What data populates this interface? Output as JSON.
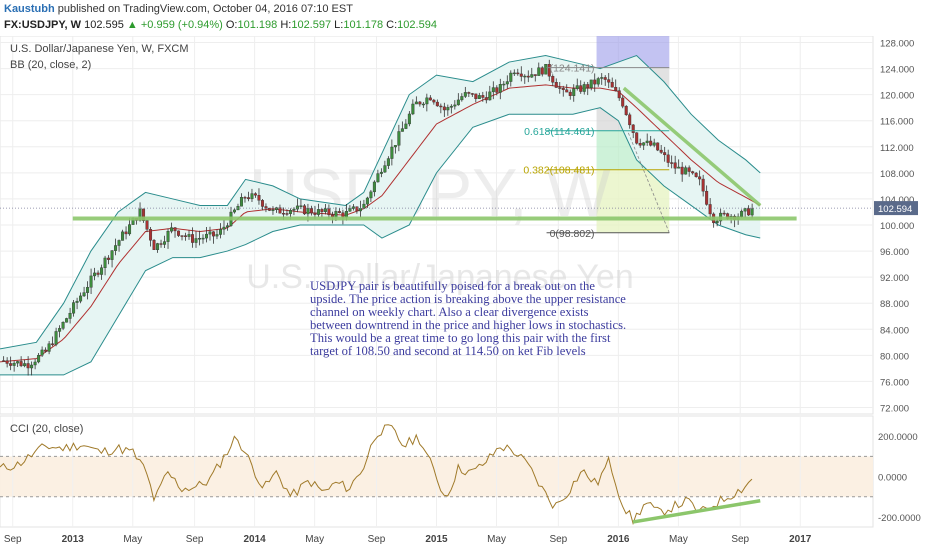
{
  "header": {
    "author": "Kaustubh",
    "published": "published on TradingView.com, October 04, 2016 07:10 EST",
    "symbol": "FX:USDJPY, W",
    "last": "102.595",
    "change": "+0.959 (+0.94%)",
    "open_label": "O:",
    "open": "101.198",
    "high_label": "H:",
    "high": "102.597",
    "low_label": "L:",
    "low": "101.178",
    "close_label": "C:",
    "close": "102.594"
  },
  "main_pane": {
    "title": "U.S. Dollar/Japanese Yen, W, FXCM",
    "indicator": "BB (20, close, 2)",
    "watermark_symbol": "USDJPY, W",
    "watermark_name": "U.S. Dollar/Japanese Yen",
    "last_price_tag": "102.594",
    "annotation": "USDJPY pair is beautifully poised for a break out on the upside. The price action is breaking above the upper resistance channel on weekly chart. Also a clear divergence exists between downtrend in the price and higher lows in stochastics. This would be a great time to go long this pair with the first target of 108.50 and second at 114.50 on ket Fib levels"
  },
  "fib_levels": [
    {
      "label": "(124.141)",
      "value": 124.141,
      "color": "#888888"
    },
    {
      "label": "0.618(114.461)",
      "value": 114.461,
      "color": "#26a69a"
    },
    {
      "label": "0.382(108.481)",
      "value": 108.481,
      "color": "#b8a400"
    },
    {
      "label": "0(98.802)",
      "value": 98.802,
      "color": "#555555"
    }
  ],
  "cci_pane": {
    "title": "CCI (20, close)",
    "ylim": [
      -250,
      300
    ],
    "ticks": [
      {
        "v": 200,
        "label": "200.0000"
      },
      {
        "v": 0,
        "label": "0.0000"
      },
      {
        "v": -200,
        "label": "-200.0000"
      }
    ],
    "band": [
      -100,
      100
    ]
  },
  "x_axis": {
    "ticks": [
      {
        "label": "Sep",
        "x": 2012.67,
        "bold": false
      },
      {
        "label": "2013",
        "x": 2013.0,
        "bold": true
      },
      {
        "label": "May",
        "x": 2013.33,
        "bold": false
      },
      {
        "label": "Sep",
        "x": 2013.67,
        "bold": false
      },
      {
        "label": "2014",
        "x": 2014.0,
        "bold": true
      },
      {
        "label": "May",
        "x": 2014.33,
        "bold": false
      },
      {
        "label": "Sep",
        "x": 2014.67,
        "bold": false
      },
      {
        "label": "2015",
        "x": 2015.0,
        "bold": true
      },
      {
        "label": "May",
        "x": 2015.33,
        "bold": false
      },
      {
        "label": "Sep",
        "x": 2015.67,
        "bold": false
      },
      {
        "label": "2016",
        "x": 2016.0,
        "bold": true
      },
      {
        "label": "May",
        "x": 2016.33,
        "bold": false
      },
      {
        "label": "Sep",
        "x": 2016.67,
        "bold": false
      },
      {
        "label": "2017",
        "x": 2017.0,
        "bold": true
      }
    ]
  },
  "chart_data": {
    "type": "candlestick",
    "title": "U.S. Dollar/Japanese Yen, W, FXCM",
    "ylim": [
      71,
      129
    ],
    "xlim": [
      2012.6,
      2017.4
    ],
    "y_ticks": [
      {
        "v": 128,
        "label": "128.000"
      },
      {
        "v": 124,
        "label": "124.000"
      },
      {
        "v": 120,
        "label": "120.000"
      },
      {
        "v": 116,
        "label": "116.000"
      },
      {
        "v": 112,
        "label": "112.000"
      },
      {
        "v": 108,
        "label": "108.000"
      },
      {
        "v": 104,
        "label": "104.000"
      },
      {
        "v": 100,
        "label": "100.000"
      },
      {
        "v": 96,
        "label": "96.000"
      },
      {
        "v": 92,
        "label": "92.000"
      },
      {
        "v": 88,
        "label": "88.000"
      },
      {
        "v": 84,
        "label": "84.000"
      },
      {
        "v": 80,
        "label": "80.000"
      },
      {
        "v": 76,
        "label": "76.000"
      },
      {
        "v": 72,
        "label": "72.000"
      }
    ],
    "close_path": [
      [
        2012.62,
        79.2
      ],
      [
        2012.75,
        78.6
      ],
      [
        2012.85,
        80.5
      ],
      [
        2012.95,
        85.0
      ],
      [
        2013.05,
        89.5
      ],
      [
        2013.15,
        93.5
      ],
      [
        2013.25,
        97.5
      ],
      [
        2013.37,
        102.0
      ],
      [
        2013.45,
        96.5
      ],
      [
        2013.55,
        99.5
      ],
      [
        2013.65,
        97.8
      ],
      [
        2013.8,
        98.5
      ],
      [
        2013.95,
        104.5
      ],
      [
        2014.02,
        104.0
      ],
      [
        2014.1,
        102.0
      ],
      [
        2014.2,
        102.5
      ],
      [
        2014.3,
        102.2
      ],
      [
        2014.4,
        101.8
      ],
      [
        2014.5,
        101.7
      ],
      [
        2014.6,
        103.0
      ],
      [
        2014.7,
        109.0
      ],
      [
        2014.8,
        114.0
      ],
      [
        2014.88,
        118.5
      ],
      [
        2014.97,
        119.8
      ],
      [
        2015.05,
        117.5
      ],
      [
        2015.15,
        120.0
      ],
      [
        2015.25,
        119.5
      ],
      [
        2015.35,
        121.0
      ],
      [
        2015.43,
        124.0
      ],
      [
        2015.5,
        123.0
      ],
      [
        2015.6,
        124.0
      ],
      [
        2015.7,
        120.0
      ],
      [
        2015.8,
        121.0
      ],
      [
        2015.92,
        122.5
      ],
      [
        2016.02,
        119.0
      ],
      [
        2016.1,
        113.0
      ],
      [
        2016.2,
        112.0
      ],
      [
        2016.3,
        109.0
      ],
      [
        2016.38,
        108.0
      ],
      [
        2016.45,
        106.5
      ],
      [
        2016.52,
        101.0
      ],
      [
        2016.6,
        101.5
      ],
      [
        2016.67,
        101.5
      ],
      [
        2016.75,
        102.594
      ]
    ],
    "bb_upper": [
      [
        2012.6,
        81
      ],
      [
        2012.8,
        82
      ],
      [
        2012.95,
        88
      ],
      [
        2013.1,
        96
      ],
      [
        2013.25,
        102
      ],
      [
        2013.4,
        105
      ],
      [
        2013.55,
        104
      ],
      [
        2013.7,
        103
      ],
      [
        2013.85,
        103
      ],
      [
        2013.95,
        107
      ],
      [
        2014.1,
        106
      ],
      [
        2014.25,
        104
      ],
      [
        2014.5,
        103
      ],
      [
        2014.6,
        105
      ],
      [
        2014.7,
        111
      ],
      [
        2014.85,
        120
      ],
      [
        2015.0,
        123
      ],
      [
        2015.2,
        122
      ],
      [
        2015.4,
        125
      ],
      [
        2015.6,
        126
      ],
      [
        2015.75,
        125
      ],
      [
        2015.9,
        124
      ],
      [
        2016.0,
        125
      ],
      [
        2016.1,
        126
      ],
      [
        2016.25,
        122
      ],
      [
        2016.4,
        117
      ],
      [
        2016.55,
        113
      ],
      [
        2016.7,
        110
      ],
      [
        2016.78,
        108
      ]
    ],
    "bb_lower": [
      [
        2012.6,
        77
      ],
      [
        2012.8,
        77
      ],
      [
        2012.95,
        77
      ],
      [
        2013.1,
        79
      ],
      [
        2013.25,
        86
      ],
      [
        2013.4,
        93
      ],
      [
        2013.55,
        95
      ],
      [
        2013.7,
        95
      ],
      [
        2013.85,
        96
      ],
      [
        2013.95,
        97
      ],
      [
        2014.1,
        99
      ],
      [
        2014.25,
        100
      ],
      [
        2014.5,
        100
      ],
      [
        2014.6,
        100
      ],
      [
        2014.7,
        98
      ],
      [
        2014.85,
        100
      ],
      [
        2015.0,
        108
      ],
      [
        2015.2,
        115
      ],
      [
        2015.4,
        117
      ],
      [
        2015.6,
        117
      ],
      [
        2015.75,
        117
      ],
      [
        2015.9,
        118
      ],
      [
        2016.0,
        116
      ],
      [
        2016.1,
        110
      ],
      [
        2016.25,
        106
      ],
      [
        2016.4,
        103
      ],
      [
        2016.55,
        100
      ],
      [
        2016.7,
        98.5
      ],
      [
        2016.78,
        98
      ]
    ],
    "cci_values": [
      [
        2012.6,
        40
      ],
      [
        2012.7,
        60
      ],
      [
        2012.78,
        110
      ],
      [
        2012.85,
        150
      ],
      [
        2012.95,
        140
      ],
      [
        2013.05,
        160
      ],
      [
        2013.15,
        120
      ],
      [
        2013.25,
        140
      ],
      [
        2013.33,
        120
      ],
      [
        2013.4,
        30
      ],
      [
        2013.45,
        -120
      ],
      [
        2013.52,
        20
      ],
      [
        2013.6,
        -60
      ],
      [
        2013.68,
        -50
      ],
      [
        2013.75,
        -20
      ],
      [
        2013.82,
        80
      ],
      [
        2013.9,
        200
      ],
      [
        2013.97,
        80
      ],
      [
        2014.05,
        -60
      ],
      [
        2014.12,
        20
      ],
      [
        2014.2,
        -100
      ],
      [
        2014.3,
        -20
      ],
      [
        2014.38,
        -80
      ],
      [
        2014.45,
        -30
      ],
      [
        2014.52,
        -60
      ],
      [
        2014.6,
        50
      ],
      [
        2014.67,
        220
      ],
      [
        2014.75,
        240
      ],
      [
        2014.82,
        150
      ],
      [
        2014.9,
        200
      ],
      [
        2014.97,
        60
      ],
      [
        2015.05,
        -110
      ],
      [
        2015.12,
        40
      ],
      [
        2015.2,
        20
      ],
      [
        2015.28,
        80
      ],
      [
        2015.35,
        150
      ],
      [
        2015.42,
        130
      ],
      [
        2015.5,
        60
      ],
      [
        2015.58,
        -60
      ],
      [
        2015.65,
        -150
      ],
      [
        2015.72,
        -80
      ],
      [
        2015.8,
        30
      ],
      [
        2015.88,
        -40
      ],
      [
        2015.95,
        80
      ],
      [
        2016.02,
        -130
      ],
      [
        2016.08,
        -220
      ],
      [
        2016.15,
        -130
      ],
      [
        2016.22,
        -180
      ],
      [
        2016.3,
        -150
      ],
      [
        2016.38,
        -120
      ],
      [
        2016.45,
        -180
      ],
      [
        2016.52,
        -140
      ],
      [
        2016.6,
        -100
      ],
      [
        2016.68,
        -60
      ],
      [
        2016.75,
        0
      ]
    ],
    "trendlines": {
      "support": 101.0,
      "resistance_from": [
        2016.03,
        121.0
      ],
      "resistance_to": [
        2016.78,
        103.0
      ],
      "cci_from": [
        2016.08,
        -225
      ],
      "cci_to": [
        2016.78,
        -120
      ]
    }
  }
}
